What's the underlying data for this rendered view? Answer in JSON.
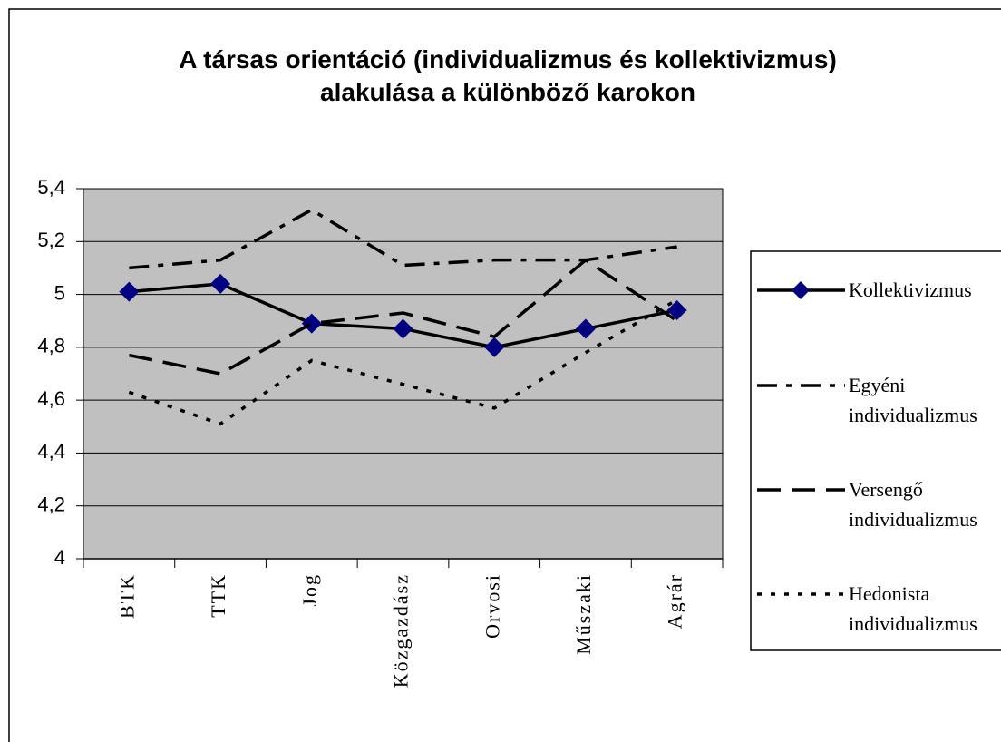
{
  "chart_data": {
    "type": "line",
    "title": "A társas orientáció (individualizmus és kollektivizmus) alakulása a különböző karokon",
    "categories": [
      "BTK",
      "TTK",
      "Jog",
      "Közgazdász",
      "Orvosi",
      "Műszaki",
      "Agrár"
    ],
    "series": [
      {
        "name": "Kollektivizmus",
        "color": "#000000",
        "marker": "diamond",
        "marker_color": "#000080",
        "dash": "solid",
        "values": [
          5.01,
          5.04,
          4.89,
          4.87,
          4.8,
          4.87,
          4.94
        ]
      },
      {
        "name": "Egyéni individualizmus",
        "color": "#000000",
        "dash": "dashdot",
        "values": [
          5.1,
          5.13,
          5.32,
          5.11,
          5.13,
          5.13,
          5.18
        ]
      },
      {
        "name": "Versengő individualizmus",
        "color": "#000000",
        "dash": "dash",
        "values": [
          4.77,
          4.7,
          4.89,
          4.93,
          4.84,
          5.13,
          4.9
        ]
      },
      {
        "name": "Hedonista individualizmus",
        "color": "#000000",
        "dash": "dot",
        "values": [
          4.63,
          4.51,
          4.75,
          4.66,
          4.57,
          4.78,
          4.98
        ]
      }
    ],
    "ylim": [
      4,
      5.4
    ],
    "yticks": [
      4,
      {
        "value": 4.2,
        "label": "4,2"
      },
      {
        "value": 4.4,
        "label": "4,4"
      },
      {
        "value": 4.6,
        "label": "4,6"
      },
      {
        "value": 4.8,
        "label": "4,8"
      },
      5,
      {
        "value": 5.2,
        "label": "5,2"
      },
      {
        "value": 5.4,
        "label": "5,4"
      }
    ],
    "grid": true,
    "plot_background": "#c0c0c0",
    "legend": "right"
  }
}
